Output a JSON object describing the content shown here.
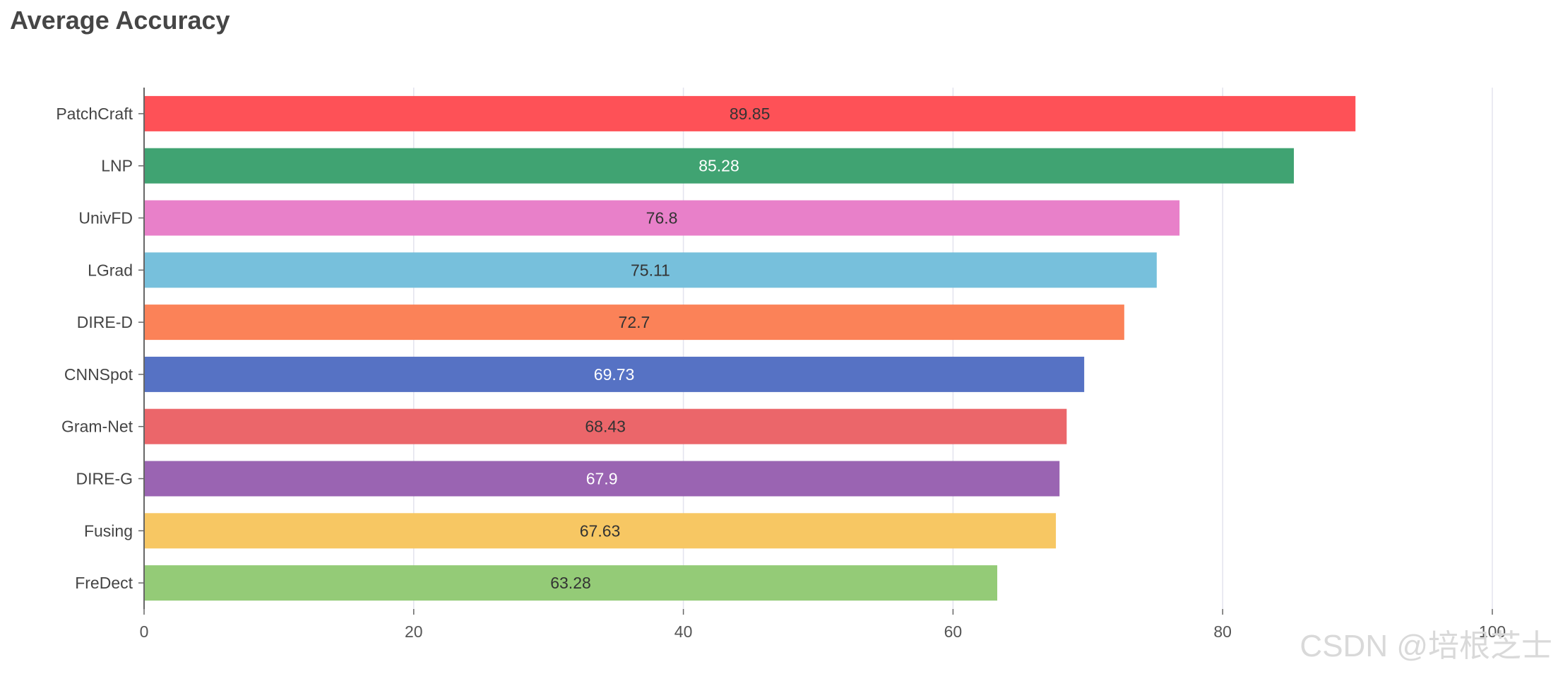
{
  "title": "Average Accuracy",
  "watermark": "CSDN @培根芝士",
  "chart_data": {
    "type": "bar",
    "orientation": "horizontal",
    "title": "Average Accuracy",
    "xlabel": "",
    "ylabel": "",
    "xlim": [
      0,
      100
    ],
    "xticks": [
      0,
      20,
      40,
      60,
      80,
      100
    ],
    "grid": "vertical",
    "legend": "none",
    "categories": [
      "PatchCraft",
      "LNP",
      "UnivFD",
      "LGrad",
      "DIRE-D",
      "CNNSpot",
      "Gram-Net",
      "DIRE-G",
      "Fusing",
      "FreDect"
    ],
    "values": [
      89.85,
      85.28,
      76.8,
      75.11,
      72.7,
      69.73,
      68.43,
      67.9,
      67.63,
      63.28
    ],
    "value_labels": [
      "89.85",
      "85.28",
      "76.8",
      "75.11",
      "72.7",
      "69.73",
      "68.43",
      "67.9",
      "67.63",
      "63.28"
    ],
    "colors": [
      "#fe5157",
      "#40a372",
      "#e880c9",
      "#77c0dc",
      "#fb8258",
      "#5672c4",
      "#eb666a",
      "#9a64b2",
      "#f7c763",
      "#94cb77"
    ],
    "label_colors": [
      "#333333",
      "#ffffff",
      "#333333",
      "#333333",
      "#333333",
      "#ffffff",
      "#333333",
      "#ffffff",
      "#333333",
      "#333333"
    ]
  }
}
